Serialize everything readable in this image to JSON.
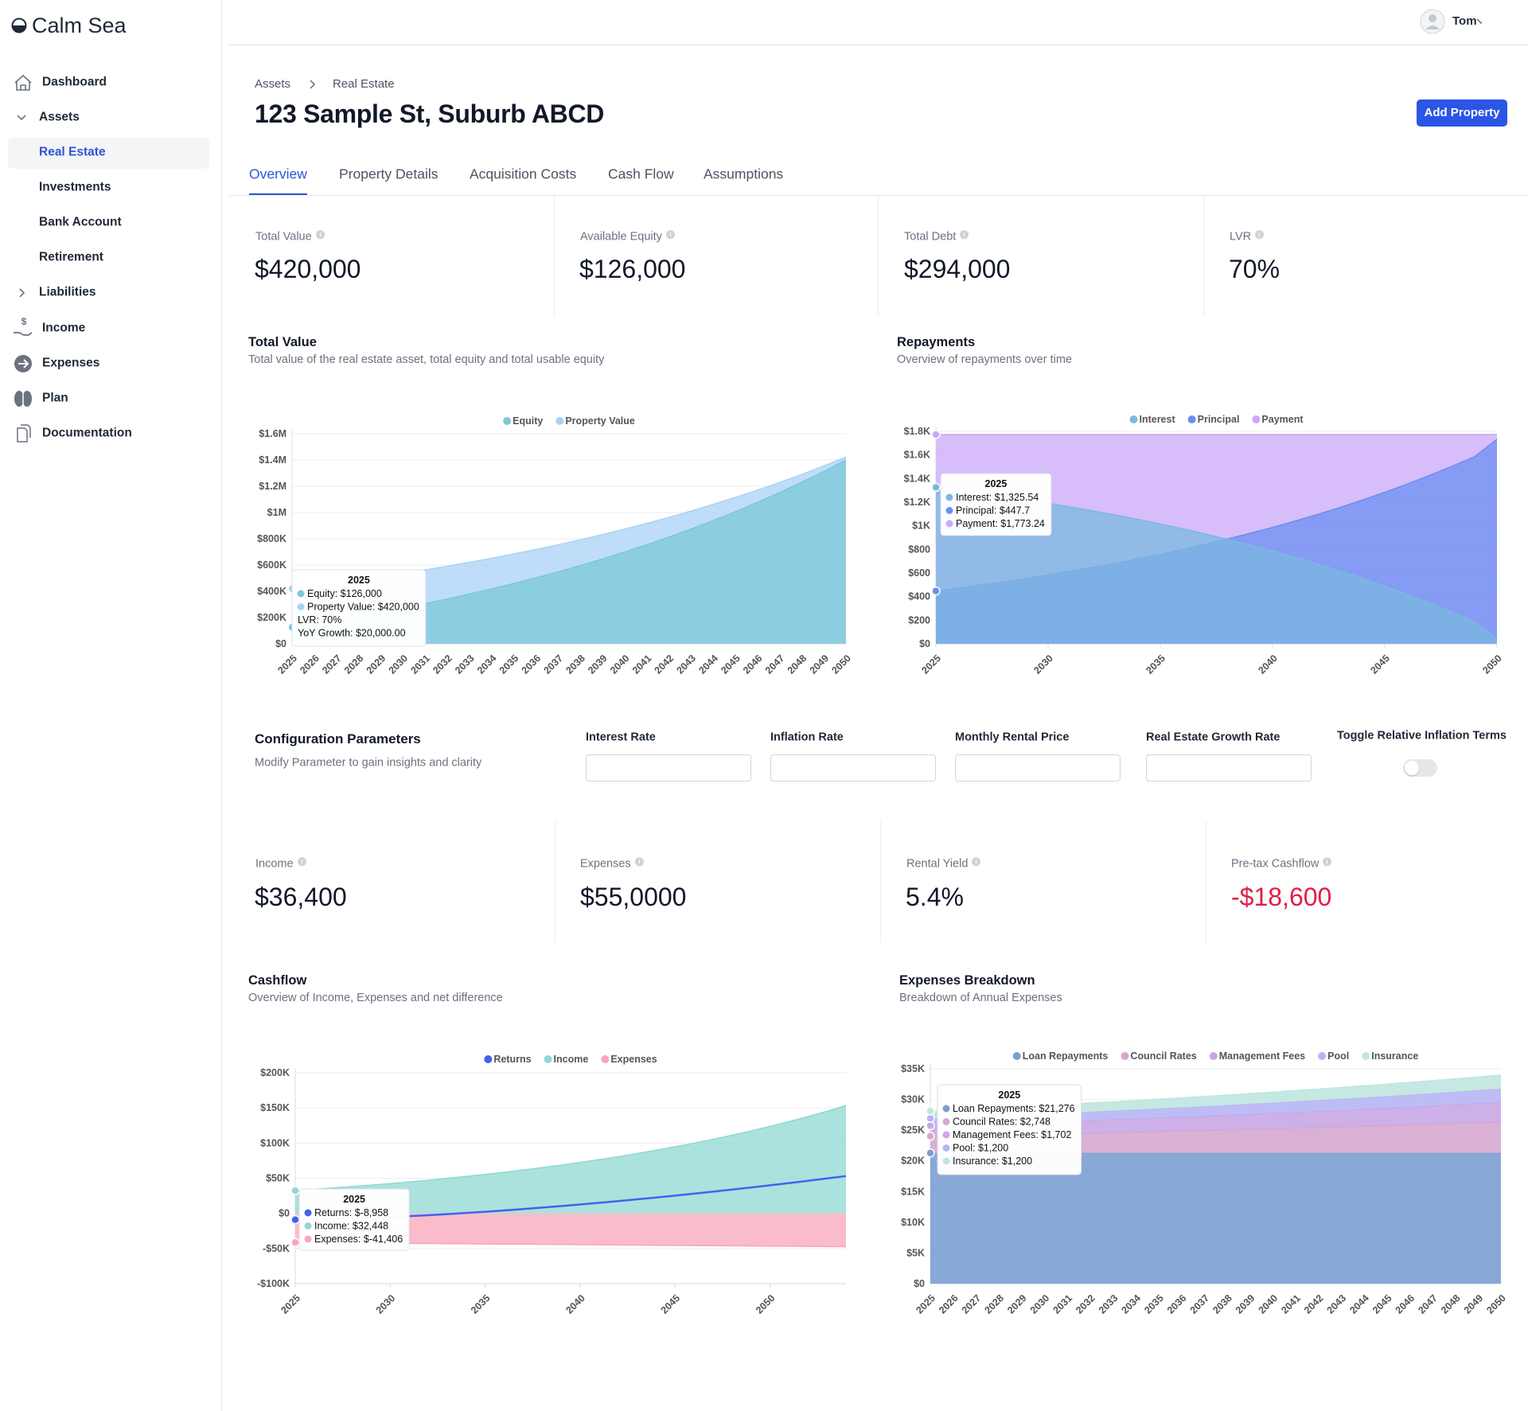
{
  "sidebar": {
    "brand": "Calm Sea",
    "nav": [
      "Dashboard",
      "Assets",
      "Real Estate",
      "Investments",
      "Bank Account",
      "Retirement",
      "Liabilities",
      "Income",
      "Expenses",
      "Plan",
      "Documentation"
    ]
  },
  "user": "Tom",
  "breadcrumb": [
    "Assets",
    "Real Estate"
  ],
  "title": "123 Sample St, Suburb ABCD",
  "button": "Add Property",
  "tabs": [
    "Overview",
    "Property Details",
    "Acquisition Costs",
    "Cash Flow",
    "Assumptions"
  ],
  "kpis": [
    {
      "label": "Total Value",
      "value": "$420,000"
    },
    {
      "label": "Available Equity",
      "value": "$126,000"
    },
    {
      "label": "Total Debt",
      "value": "$294,000"
    },
    {
      "label": "LVR",
      "value": "70%"
    }
  ],
  "config": {
    "title": "Configuration Parameters",
    "subtitle": "Modify Parameter to gain insights and clarity",
    "fields": [
      "Interest Rate",
      "Inflation Rate",
      "Monthly Rental Price",
      "Real Estate Growth Rate"
    ],
    "toggle_label": "Toggle Relative Inflation Terms"
  },
  "kpis2": [
    {
      "label": "Income",
      "value": "$36,400"
    },
    {
      "label": "Expenses",
      "value": "$55,0000"
    },
    {
      "label": "Rental Yield",
      "value": "5.4%"
    },
    {
      "label": "Pre-tax Cashflow",
      "value": "-$18,600",
      "color": "#e11d48"
    }
  ],
  "chart_data": [
    {
      "type": "area",
      "title": "Total Value",
      "subtitle": "Total value of the real estate asset, total equity and total usable equity",
      "categories": [
        "2025",
        "2026",
        "2027",
        "2028",
        "2029",
        "2030",
        "2031",
        "2032",
        "2033",
        "2034",
        "2035",
        "2036",
        "2037",
        "2038",
        "2039",
        "2040",
        "2041",
        "2042",
        "2043",
        "2044",
        "2045",
        "2046",
        "2047",
        "2048",
        "2049",
        "2050"
      ],
      "series": [
        {
          "name": "Equity",
          "color": "#7cc7d9",
          "values": [
            126000,
            152374,
            180088,
            209212,
            239816,
            271975,
            305770,
            341283,
            378602,
            417819,
            459031,
            502339,
            547849,
            595674,
            645932,
            698747,
            754248,
            812573,
            873865,
            938276,
            1005964,
            1077097,
            1151849,
            1230405,
            1312960,
            1399716
          ]
        },
        {
          "name": "Property Value",
          "color": "#a9d2f7",
          "values": [
            420000,
            441000,
            463050,
            486203,
            510513,
            536038,
            562840,
            590982,
            620531,
            651558,
            684136,
            718343,
            754260,
            791973,
            831572,
            873151,
            916808,
            962649,
            1010781,
            1061320,
            1114386,
            1170106,
            1228611,
            1290041,
            1354543,
            1422270
          ]
        }
      ],
      "ylim": [
        0,
        1600000
      ],
      "yticks": [
        {
          "value": 0,
          "label": "$0"
        },
        {
          "value": 200000,
          "label": "$200K"
        },
        {
          "value": 400000,
          "label": "$400K"
        },
        {
          "value": 600000,
          "label": "$600K"
        },
        {
          "value": 800000,
          "label": "$800K"
        },
        {
          "value": 1000000,
          "label": "$1M"
        },
        {
          "value": 1200000,
          "label": "$1.2M"
        },
        {
          "value": 1400000,
          "label": "$1.4M"
        },
        {
          "value": 1600000,
          "label": "$1.6M"
        }
      ],
      "grid": true,
      "stacked": false,
      "tooltip": {
        "title": "2025",
        "items": [
          "Equity: $126,000",
          "Property Value: $420,000",
          "LVR: 70%",
          "YoY Growth: $20,000.00"
        ]
      }
    },
    {
      "type": "area",
      "title": "Repayments",
      "subtitle": "Overview of repayments over time",
      "x": [
        2025,
        2026,
        2027,
        2028,
        2029,
        2030,
        2031,
        2032,
        2033,
        2034,
        2035,
        2036,
        2037,
        2038,
        2039,
        2040,
        2041,
        2042,
        2043,
        2044,
        2045,
        2046,
        2047,
        2048,
        2049,
        2050
      ],
      "series": [
        {
          "name": "Interest",
          "color": "#7ab8e0",
          "values": [
            1325.54,
            1302,
            1276,
            1249,
            1221,
            1191,
            1159,
            1126,
            1091,
            1054,
            1015,
            974,
            931,
            885,
            837,
            787,
            733,
            677,
            618,
            555,
            489,
            420,
            346,
            269,
            188,
            40
          ]
        },
        {
          "name": "Principal",
          "color": "#6b8ff0",
          "values": [
            447.7,
            471,
            497,
            524,
            552,
            582,
            614,
            647,
            682,
            719,
            758,
            799,
            842,
            888,
            936,
            986,
            1040,
            1096,
            1155,
            1218,
            1284,
            1353,
            1427,
            1504,
            1585,
            1733
          ]
        },
        {
          "name": "Payment",
          "color": "#c9a8f8",
          "values": [
            1773.24,
            1773.24,
            1773.24,
            1773.24,
            1773.24,
            1773.24,
            1773.24,
            1773.24,
            1773.24,
            1773.24,
            1773.24,
            1773.24,
            1773.24,
            1773.24,
            1773.24,
            1773.24,
            1773.24,
            1773.24,
            1773.24,
            1773.24,
            1773.24,
            1773.24,
            1773.24,
            1773.24,
            1773.24,
            1773.24
          ]
        }
      ],
      "xlim": [
        2025,
        2050
      ],
      "xticks": [
        2025,
        2030,
        2035,
        2040,
        2045,
        2050
      ],
      "ylim": [
        0,
        1800
      ],
      "yticks": [
        {
          "value": 0,
          "label": "$0"
        },
        {
          "value": 200,
          "label": "$200"
        },
        {
          "value": 400,
          "label": "$400"
        },
        {
          "value": 600,
          "label": "$600"
        },
        {
          "value": 800,
          "label": "$800"
        },
        {
          "value": 1000,
          "label": "$1K"
        },
        {
          "value": 1200,
          "label": "$1.2K"
        },
        {
          "value": 1400,
          "label": "$1.4K"
        },
        {
          "value": 1600,
          "label": "$1.6K"
        },
        {
          "value": 1800,
          "label": "$1.8K"
        }
      ],
      "grid": true,
      "stacked": false,
      "tooltip": {
        "title": "2025",
        "items": [
          "Interest: $1,325.54",
          "Principal: $447.7",
          "Payment: $1,773.24"
        ]
      }
    },
    {
      "type": "area",
      "title": "Cashflow",
      "subtitle": "Overview of Income, Expenses and net difference",
      "x": [
        2025,
        2026,
        2027,
        2028,
        2029,
        2030,
        2031,
        2032,
        2033,
        2034,
        2035,
        2036,
        2037,
        2038,
        2039,
        2040,
        2041,
        2042,
        2043,
        2044,
        2045,
        2046,
        2047,
        2048,
        2049,
        2050,
        2051,
        2052,
        2053,
        2054
      ],
      "series": [
        {
          "name": "Returns",
          "color": "#4361ee",
          "type": "line",
          "values": [
            -8958,
            -8674,
            -8097,
            -7313,
            -6355,
            -5236,
            -3971,
            -2578,
            -1058,
            580,
            2326,
            4192,
            6152,
            8216,
            10380,
            12630,
            14986,
            17417,
            19953,
            22557,
            25254,
            28031,
            30889,
            33828,
            36848,
            39941,
            43103,
            46340,
            49657,
            53042
          ]
        },
        {
          "name": "Income",
          "color": "#8fd8d2",
          "values": [
            32448,
            34233,
            36115,
            38094,
            40203,
            42410,
            44746,
            47212,
            49808,
            52533,
            55421,
            58471,
            61684,
            65091,
            68660,
            72456,
            76415,
            80633,
            85079,
            89751,
            94683,
            99875,
            105391,
            111167,
            117300,
            123724,
            130538,
            137742,
            145302,
            153284
          ]
        },
        {
          "name": "Expenses",
          "color": "#f8a5b8",
          "values": [
            -41406,
            -41613,
            -41820,
            -42027,
            -42234,
            -42441,
            -42648,
            -42855,
            -43062,
            -43269,
            -43476,
            -43683,
            -43890,
            -44097,
            -44304,
            -44511,
            -44718,
            -44925,
            -45132,
            -45339,
            -45546,
            -45753,
            -45960,
            -46167,
            -46374,
            -46581,
            -46788,
            -46995,
            -47202,
            -47409
          ]
        }
      ],
      "xlim": [
        2025,
        2054
      ],
      "xticks": [
        2025,
        2030,
        2035,
        2040,
        2045,
        2050
      ],
      "ylim": [
        -100000,
        200000
      ],
      "yticks": [
        {
          "value": -100000,
          "label": "-$100K"
        },
        {
          "value": -50000,
          "label": "-$50K"
        },
        {
          "value": 0,
          "label": "$0"
        },
        {
          "value": 50000,
          "label": "$50K"
        },
        {
          "value": 100000,
          "label": "$100K"
        },
        {
          "value": 150000,
          "label": "$150K"
        },
        {
          "value": 200000,
          "label": "$200K"
        }
      ],
      "grid": true,
      "stacked": false,
      "tooltip": {
        "title": "2025",
        "items": [
          "Returns: $-8,958",
          "Income: $32,448",
          "Expenses: $-41,406"
        ]
      }
    },
    {
      "type": "area",
      "title": "Expenses Breakdown",
      "subtitle": "Breakdown of Annual Expenses",
      "categories": [
        "2025",
        "2026",
        "2027",
        "2028",
        "2029",
        "2030",
        "2031",
        "2032",
        "2033",
        "2034",
        "2035",
        "2036",
        "2037",
        "2038",
        "2039",
        "2040",
        "2041",
        "2042",
        "2043",
        "2044",
        "2045",
        "2046",
        "2047",
        "2048",
        "2049",
        "2050"
      ],
      "series": [
        {
          "name": "Loan Repayments",
          "color": "#7b9fd3",
          "values": [
            21276,
            21276,
            21276,
            21276,
            21276,
            21276,
            21276,
            21276,
            21276,
            21276,
            21276,
            21276,
            21276,
            21276,
            21276,
            21276,
            21276,
            21276,
            21276,
            21276,
            21276,
            21276,
            21276,
            21276,
            21276,
            21276
          ]
        },
        {
          "name": "Council Rates",
          "color": "#d6a7cf",
          "values": [
            2748,
            2817,
            2887,
            2959,
            3033,
            3109,
            3187,
            3267,
            3348,
            3432,
            3518,
            3606,
            3696,
            3788,
            3883,
            3980,
            4079,
            4181,
            4286,
            4393,
            4503,
            4616,
            4731,
            4849,
            4970,
            5095
          ]
        },
        {
          "name": "Management Fees",
          "color": "#c9a7e6",
          "values": [
            1702,
            1745,
            1788,
            1833,
            1879,
            1926,
            1974,
            2023,
            2074,
            2126,
            2179,
            2233,
            2289,
            2346,
            2405,
            2465,
            2527,
            2590,
            2655,
            2721,
            2789,
            2859,
            2930,
            3003,
            3078,
            3155
          ]
        },
        {
          "name": "Pool",
          "color": "#b7b5f3",
          "values": [
            1200,
            1230,
            1261,
            1292,
            1325,
            1358,
            1392,
            1426,
            1462,
            1499,
            1536,
            1575,
            1614,
            1654,
            1696,
            1738,
            1781,
            1826,
            1872,
            1918,
            1966,
            2016,
            2066,
            2118,
            2170,
            2225
          ]
        },
        {
          "name": "Insurance",
          "color": "#bfe6e0",
          "values": [
            1200,
            1230,
            1261,
            1292,
            1325,
            1358,
            1392,
            1426,
            1462,
            1499,
            1536,
            1575,
            1614,
            1654,
            1696,
            1738,
            1781,
            1826,
            1872,
            1918,
            1966,
            2016,
            2066,
            2118,
            2170,
            2225
          ]
        }
      ],
      "ylim": [
        0,
        35000
      ],
      "yticks": [
        {
          "value": 0,
          "label": "$0"
        },
        {
          "value": 5000,
          "label": "$5K"
        },
        {
          "value": 10000,
          "label": "$10K"
        },
        {
          "value": 15000,
          "label": "$15K"
        },
        {
          "value": 20000,
          "label": "$20K"
        },
        {
          "value": 25000,
          "label": "$25K"
        },
        {
          "value": 30000,
          "label": "$30K"
        },
        {
          "value": 35000,
          "label": "$35K"
        }
      ],
      "grid": true,
      "stacked": true,
      "tooltip": {
        "title": "2025",
        "items": [
          "Loan Repayments: $21,276",
          "Council Rates: $2,748",
          "Management Fees: $1,702",
          "Pool: $1,200",
          "Insurance: $1,200"
        ]
      }
    }
  ]
}
